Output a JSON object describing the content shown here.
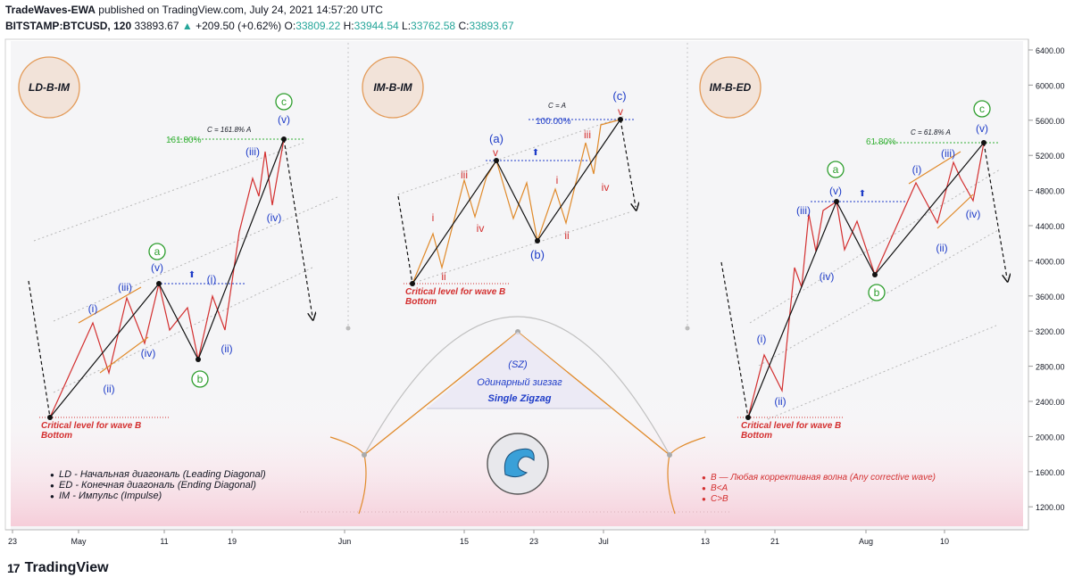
{
  "header": {
    "publisher": "TradeWaves-EWA",
    "published_text": "published on TradingView.com, July 24, 2021 14:57:20 UTC",
    "symbol": "BITSTAMP:BTCUSD, 120",
    "last": "33893.67",
    "change": "+209.50 (+0.62%)",
    "o_label": "O:",
    "o_value": "33809.22",
    "h_label": "H:",
    "h_value": "33944.54",
    "l_label": "L:",
    "l_value": "33762.58",
    "c_label": "C:",
    "c_value": "33893.67"
  },
  "footer": {
    "brand": "TradingView",
    "logo": "17"
  },
  "colors": {
    "wave_red": "#d32f2f",
    "wave_black": "#111111",
    "label_blue": "#1e3cc8",
    "label_green": "#2e9e2e",
    "channel_orange": "#e08a2a",
    "grid": "#b0b0b0",
    "badge_fill": "#f2e3d9",
    "badge_stroke": "#e39a57"
  },
  "chart_data": {
    "type": "line",
    "y_ticks": [
      "6400.00",
      "6000.00",
      "5600.00",
      "5200.00",
      "4800.00",
      "4400.00",
      "4000.00",
      "3600.00",
      "3200.00",
      "2800.00",
      "2400.00",
      "2000.00",
      "1600.00",
      "1200.00"
    ],
    "x_ticks": [
      "23",
      "May",
      "11",
      "19",
      "Jun",
      "15",
      "23",
      "Jul",
      "13",
      "21",
      "Aug",
      "10"
    ],
    "panels": {
      "left": {
        "badge": "LD-B-IM",
        "critical": "Critical level for wave B",
        "critical2": "Bottom",
        "fib_pct": "161.80%",
        "fib_eq": "C = 161.8% A",
        "labels": {
          "a": "a",
          "b": "b",
          "c": "c",
          "i": "(i)",
          "ii": "(ii)",
          "iii": "(iii)",
          "iv": "(iv)",
          "v": "(v)",
          "up": "⬆"
        }
      },
      "middle": {
        "badge": "IM-B-IM",
        "critical": "Critical level for wave B",
        "critical2": "Bottom",
        "fib_pct": "100.00%",
        "fib_eq": "C = A",
        "labels": {
          "a": "(a)",
          "b": "(b)",
          "c": "(c)",
          "i": "i",
          "ii": "ii",
          "iii": "iii",
          "iv": "iv",
          "v": "v",
          "up": "⬆"
        }
      },
      "right": {
        "badge": "IM-B-ED",
        "critical": "Critical level for wave B",
        "critical2": "Bottom",
        "fib_pct": "61.80%",
        "fib_eq": "C = 61.8% A",
        "labels": {
          "a": "a",
          "b": "b",
          "c": "c",
          "i": "(i)",
          "ii": "(ii)",
          "iii": "(iii)",
          "iv": "(iv)",
          "v": "(v)",
          "up": "⬆"
        }
      }
    },
    "center_info": {
      "sz": "(SZ)",
      "ru": "Одинарный зигзаг",
      "en": "Single Zigzag"
    },
    "legend_left": [
      "LD - Начальная диагональ (Leading Diagonal)",
      "ED - Конечная диагональ (Ending Diagonal)",
      "IM - Импульс (Impulse)"
    ],
    "legend_right": [
      "B — Любая коррективная волна  (Any corrective wave)",
      "B<A",
      "C>B"
    ]
  }
}
